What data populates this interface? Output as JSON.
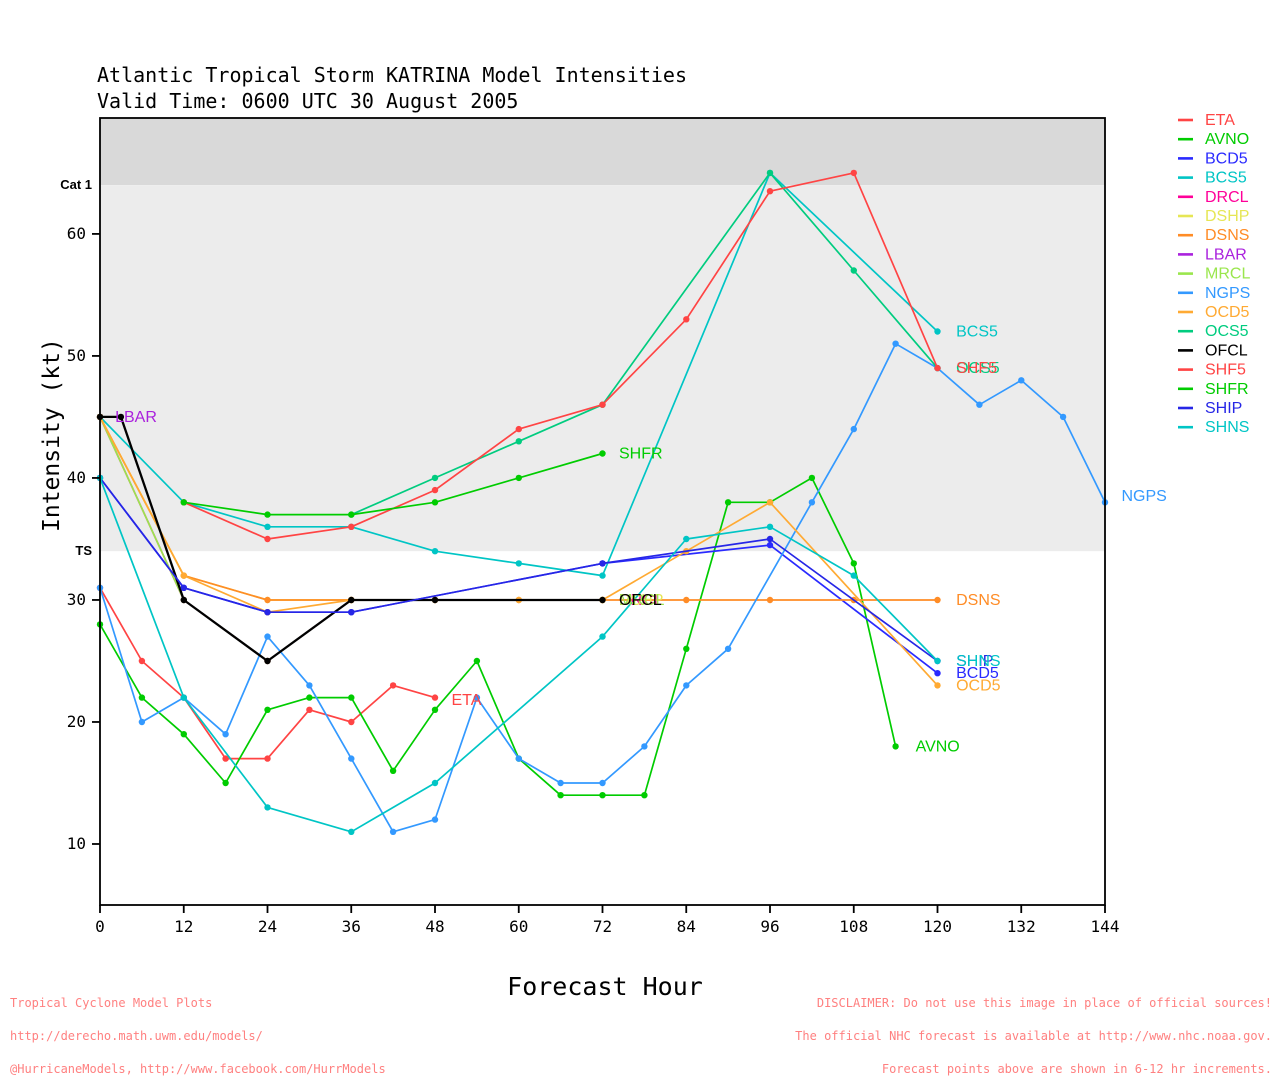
{
  "ui": {
    "title_line1": "Atlantic Tropical Storm KATRINA Model Intensities",
    "title_line2": "Valid Time: 0600 UTC 30 August 2005",
    "x_axis_title": "Forecast Hour",
    "y_axis_title": "Intensity (kt)",
    "footer_left": {
      "line1": "Tropical Cyclone Model Plots",
      "line2": "http://derecho.math.uwm.edu/models/",
      "line3": "@HurricaneModels, http://www.facebook.com/HurrModels"
    },
    "footer_right": {
      "line1": "DISCLAIMER: Do not use this image in place of official sources!",
      "line2": "The official NHC forecast is available at http://www.nhc.noaa.gov.",
      "line3": "Forecast points above are shown in 6-12 hr increments."
    },
    "footer_color": "#ff8080"
  },
  "chart_data": {
    "type": "line",
    "title": "Atlantic Tropical Storm KATRINA Model Intensities",
    "subtitle": "Valid Time: 0600 UTC 30 August 2005",
    "xlabel": "Forecast Hour",
    "ylabel": "Intensity (kt)",
    "x_ticks": [
      0,
      12,
      24,
      36,
      48,
      60,
      72,
      84,
      96,
      108,
      120,
      132,
      144
    ],
    "y_ticks": [
      10,
      20,
      30,
      40,
      50,
      60
    ],
    "xlim": [
      0,
      144
    ],
    "ylim": [
      5,
      69.5
    ],
    "grid": false,
    "legend_position": "right-outside",
    "bands": {
      "dark_color": "#d9d9d9",
      "light_color": "#ececec",
      "below_color": "#ffffff",
      "thresholds": [
        {
          "label": "TS",
          "value": 34
        },
        {
          "label": "Cat 1",
          "value": 64
        }
      ]
    },
    "series": [
      {
        "name": "ETA",
        "color": "#ff4444",
        "label_at": [
          49.5,
          21.8
        ],
        "points": [
          [
            0,
            31
          ],
          [
            6,
            25
          ],
          [
            12,
            22
          ],
          [
            18,
            17
          ],
          [
            24,
            17
          ],
          [
            30,
            21
          ],
          [
            36,
            20
          ],
          [
            42,
            23
          ],
          [
            48,
            22
          ]
        ]
      },
      {
        "name": "AVNO",
        "color": "#00cc00",
        "label_at": [
          116,
          18
        ],
        "points": [
          [
            0,
            28
          ],
          [
            6,
            22
          ],
          [
            12,
            19
          ],
          [
            18,
            15
          ],
          [
            24,
            21
          ],
          [
            30,
            22
          ],
          [
            36,
            22
          ],
          [
            42,
            16
          ],
          [
            48,
            21
          ],
          [
            54,
            25
          ],
          [
            60,
            17
          ],
          [
            66,
            14
          ],
          [
            72,
            14
          ],
          [
            78,
            14
          ],
          [
            84,
            26
          ],
          [
            90,
            38
          ],
          [
            96,
            38
          ],
          [
            102,
            40
          ],
          [
            108,
            33
          ],
          [
            114,
            18
          ]
        ]
      },
      {
        "name": "BCD5",
        "color": "#2a2aff",
        "label_at": [
          121.8,
          24
        ],
        "points": [
          [
            0,
            40
          ],
          [
            12,
            31
          ],
          [
            24,
            29
          ],
          [
            36,
            29
          ],
          [
            72,
            33
          ],
          [
            96,
            34.5
          ],
          [
            120,
            24
          ]
        ]
      },
      {
        "name": "BCS5",
        "color": "#00c5c5",
        "label_at": [
          121.8,
          52
        ],
        "points": [
          [
            0,
            45
          ],
          [
            12,
            38
          ],
          [
            24,
            36
          ],
          [
            36,
            36
          ],
          [
            48,
            34
          ],
          [
            60,
            33
          ],
          [
            72,
            32
          ],
          [
            96,
            65
          ],
          [
            120,
            52
          ]
        ]
      },
      {
        "name": "DRCL",
        "color": "#ff0099",
        "label_at": [
          73.5,
          30
        ],
        "points": [
          [
            0,
            45
          ],
          [
            12,
            30
          ],
          [
            24,
            25
          ],
          [
            36,
            30
          ],
          [
            72,
            30
          ]
        ]
      },
      {
        "name": "DSHP",
        "color": "#e6e655",
        "label_at": [
          73.5,
          30
        ],
        "points": [
          [
            0,
            45
          ],
          [
            12,
            32
          ],
          [
            24,
            30
          ],
          [
            72,
            30
          ]
        ]
      },
      {
        "name": "DSNS",
        "color": "#ff8c26",
        "label_at": [
          121.8,
          30
        ],
        "points": [
          [
            0,
            45
          ],
          [
            12,
            32
          ],
          [
            24,
            30
          ],
          [
            36,
            30
          ],
          [
            48,
            30
          ],
          [
            60,
            30
          ],
          [
            72,
            30
          ],
          [
            84,
            30
          ],
          [
            96,
            30
          ],
          [
            108,
            30
          ],
          [
            120,
            30
          ]
        ]
      },
      {
        "name": "LBAR",
        "color": "#aa22dd",
        "label_at": [
          1.3,
          45
        ],
        "points": [
          [
            0,
            45
          ]
        ]
      },
      {
        "name": "MRCL",
        "color": "#9ae64d",
        "label_at": [
          73.5,
          30
        ],
        "points": [
          [
            0,
            45
          ],
          [
            12,
            30
          ],
          [
            24,
            25
          ],
          [
            36,
            30
          ],
          [
            72,
            30
          ]
        ]
      },
      {
        "name": "NGPS",
        "color": "#3399ff",
        "label_at": [
          145.5,
          38.5
        ],
        "points": [
          [
            0,
            31
          ],
          [
            6,
            20
          ],
          [
            12,
            22
          ],
          [
            18,
            19
          ],
          [
            24,
            27
          ],
          [
            30,
            23
          ],
          [
            36,
            17
          ],
          [
            42,
            11
          ],
          [
            48,
            12
          ],
          [
            54,
            22
          ],
          [
            60,
            17
          ],
          [
            66,
            15
          ],
          [
            72,
            15
          ],
          [
            78,
            18
          ],
          [
            84,
            23
          ],
          [
            90,
            26
          ],
          [
            102,
            38
          ],
          [
            108,
            44
          ],
          [
            114,
            51
          ],
          [
            120,
            49
          ],
          [
            126,
            46
          ],
          [
            132,
            48
          ],
          [
            138,
            45
          ],
          [
            144,
            38
          ]
        ]
      },
      {
        "name": "OCD5",
        "color": "#ffaa33",
        "label_at": [
          121.8,
          23
        ],
        "points": [
          [
            0,
            45
          ],
          [
            12,
            32
          ],
          [
            24,
            29
          ],
          [
            36,
            30
          ],
          [
            48,
            30
          ],
          [
            60,
            30
          ],
          [
            72,
            30
          ],
          [
            84,
            34
          ],
          [
            96,
            38
          ],
          [
            120,
            23
          ]
        ]
      },
      {
        "name": "OCS5",
        "color": "#00cc7f",
        "label_at": [
          121.8,
          49
        ],
        "points": [
          [
            36,
            37
          ],
          [
            48,
            40
          ],
          [
            60,
            43
          ],
          [
            72,
            46
          ],
          [
            96,
            65
          ],
          [
            108,
            57
          ],
          [
            120,
            49
          ]
        ]
      },
      {
        "name": "OFCL",
        "color": "#000000",
        "label_at": [
          73.5,
          30
        ],
        "width": 2.3,
        "points": [
          [
            0,
            45
          ],
          [
            3,
            45
          ],
          [
            12,
            30
          ],
          [
            24,
            25
          ],
          [
            36,
            30
          ],
          [
            48,
            30
          ],
          [
            72,
            30
          ]
        ]
      },
      {
        "name": "SHF5",
        "color": "#ff4444",
        "label_at": [
          121.8,
          49
        ],
        "points": [
          [
            12,
            38
          ],
          [
            24,
            35
          ],
          [
            36,
            36
          ],
          [
            48,
            39
          ],
          [
            60,
            44
          ],
          [
            72,
            46
          ],
          [
            84,
            53
          ],
          [
            96,
            63.5
          ],
          [
            108,
            65
          ],
          [
            120,
            49
          ]
        ]
      },
      {
        "name": "SHFR",
        "color": "#00cc00",
        "label_at": [
          73.5,
          42
        ],
        "points": [
          [
            12,
            38
          ],
          [
            24,
            37
          ],
          [
            36,
            37
          ],
          [
            48,
            38
          ],
          [
            60,
            40
          ],
          [
            72,
            42
          ]
        ]
      },
      {
        "name": "SHIP",
        "color": "#2626e6",
        "label_at": [
          121.8,
          25
        ],
        "points": [
          [
            0,
            40
          ],
          [
            12,
            31
          ],
          [
            24,
            29
          ],
          [
            36,
            29
          ],
          [
            72,
            33
          ],
          [
            96,
            35
          ],
          [
            120,
            25
          ]
        ]
      },
      {
        "name": "SHNS",
        "color": "#00c5c5",
        "label_at": [
          121.8,
          25
        ],
        "points": [
          [
            0,
            40
          ],
          [
            12,
            22
          ],
          [
            24,
            13
          ],
          [
            36,
            11
          ],
          [
            48,
            15
          ],
          [
            72,
            27
          ],
          [
            84,
            35
          ],
          [
            96,
            36
          ],
          [
            108,
            32
          ],
          [
            120,
            25
          ]
        ]
      }
    ]
  }
}
